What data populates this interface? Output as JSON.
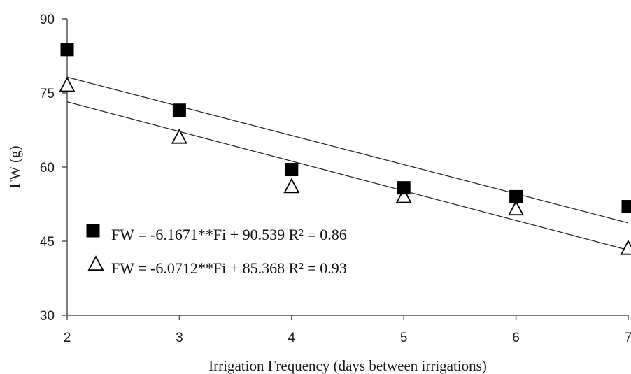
{
  "chart_data": {
    "type": "scatter",
    "title": "",
    "xlabel": "Irrigation Frequency (days between irrigations)",
    "ylabel": "FW (g)",
    "xlim": [
      2,
      7
    ],
    "ylim": [
      30,
      90
    ],
    "x_ticks": [
      "2",
      "3",
      "4",
      "5",
      "6",
      "7"
    ],
    "y_ticks": [
      "30",
      "45",
      "60",
      "75",
      "90"
    ],
    "grid": false,
    "legend_position": "bottom-left",
    "series": [
      {
        "marker": "filled-square",
        "color": "#000000",
        "x": [
          2,
          3,
          4,
          5,
          6,
          7
        ],
        "y": [
          83.8,
          71.5,
          59.5,
          55.8,
          54.0,
          52.0
        ],
        "trendline": {
          "slope": -5.9,
          "intercept": 90.0,
          "x_range": [
            2,
            7
          ]
        },
        "legend_label": "FW = -6.1671**Fi + 90.539 R² = 0.86"
      },
      {
        "marker": "open-triangle",
        "color": "#000000",
        "x": [
          2,
          3,
          4,
          5,
          6,
          7
        ],
        "y": [
          76.5,
          66.0,
          56.0,
          54.0,
          51.5,
          43.5
        ],
        "trendline": {
          "slope": -6.0,
          "intercept": 85.2,
          "x_range": [
            2,
            7
          ]
        },
        "legend_label": "FW = -6.0712**Fi + 85.368 R² = 0.93"
      }
    ]
  }
}
